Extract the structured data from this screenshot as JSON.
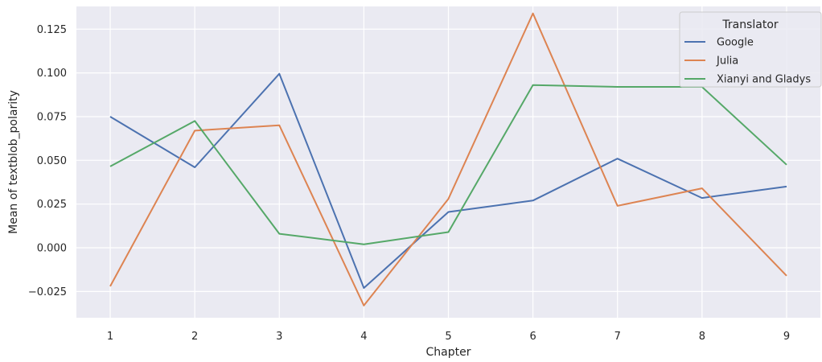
{
  "chart_data": {
    "type": "line",
    "xlabel": "Chapter",
    "ylabel": "Mean of textblob_polarity",
    "x": [
      1,
      2,
      3,
      4,
      5,
      6,
      7,
      8,
      9
    ],
    "x_ticks": [
      "1",
      "2",
      "3",
      "4",
      "5",
      "6",
      "7",
      "8",
      "9"
    ],
    "xlim": [
      0.6,
      9.4
    ],
    "ylim": [
      -0.04,
      0.138
    ],
    "y_ticks": [
      -0.025,
      0.0,
      0.025,
      0.05,
      0.075,
      0.1,
      0.125
    ],
    "y_tick_labels": [
      "−0.025",
      "0.000",
      "0.025",
      "0.050",
      "0.075",
      "0.100",
      "0.125"
    ],
    "grid": true,
    "legend": {
      "title": "Translator",
      "placement": "top-right"
    },
    "series": [
      {
        "name": "Google",
        "color": "#4c72b0",
        "values": [
          0.075,
          0.046,
          0.0995,
          -0.023,
          0.0205,
          0.027,
          0.051,
          0.0285,
          0.035
        ]
      },
      {
        "name": "Julia",
        "color": "#dd8452",
        "values": [
          -0.022,
          0.067,
          0.07,
          -0.033,
          0.028,
          0.134,
          0.024,
          0.034,
          -0.016
        ]
      },
      {
        "name": "Xianyi and Gladys",
        "color": "#55a868",
        "values": [
          0.0465,
          0.0725,
          0.008,
          0.002,
          0.009,
          0.093,
          0.092,
          0.092,
          0.0475
        ]
      }
    ]
  }
}
